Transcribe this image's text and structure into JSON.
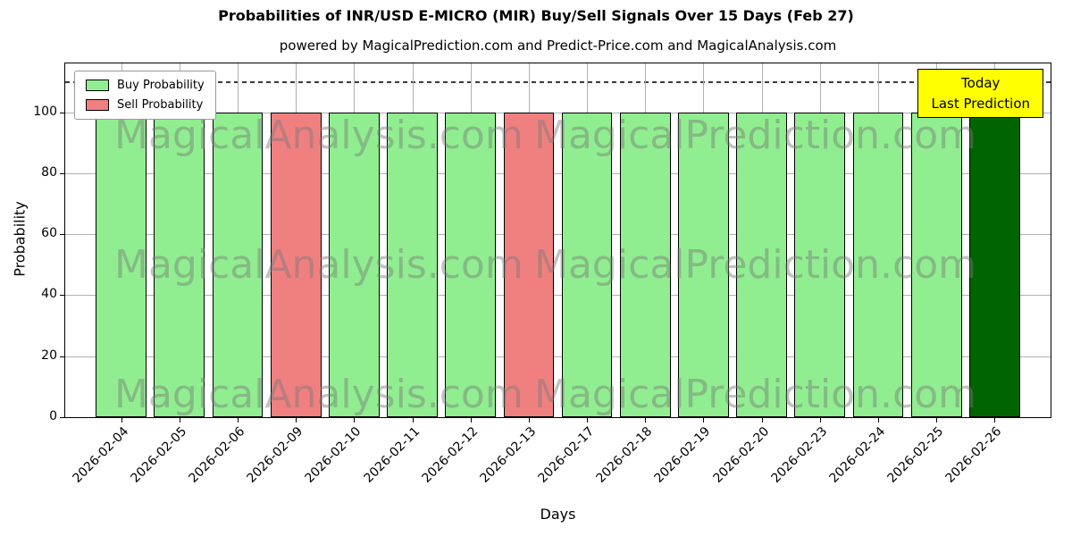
{
  "title": "Probabilities of INR/USD E-MICRO (MIR) Buy/Sell Signals Over 15 Days (Feb 27)",
  "subtitle": "powered by MagicalPrediction.com and Predict-Price.com and MagicalAnalysis.com",
  "watermarks": [
    "MagicalAnalysis.com",
    "MagicalPrediction.com"
  ],
  "legend": [
    {
      "label": "Buy Probability",
      "color": "#90EE90"
    },
    {
      "label": "Sell Probability",
      "color": "#F08080"
    }
  ],
  "annotation": {
    "lines": [
      "Today",
      "Last Prediction"
    ],
    "bg": "#FFFF00"
  },
  "chart_data": {
    "type": "bar",
    "title": "Probabilities of INR/USD E-MICRO (MIR) Buy/Sell Signals Over 15 Days (Feb 27)",
    "xlabel": "Days",
    "ylabel": "Probability",
    "ylim": [
      0,
      116
    ],
    "yticks": [
      0,
      20,
      40,
      60,
      80,
      100
    ],
    "grid": true,
    "dashed_line_y": 110,
    "legend_position": "upper left",
    "categories": [
      "2026-02-04",
      "2026-02-05",
      "2026-02-06",
      "2026-02-09",
      "2026-02-10",
      "2026-02-11",
      "2026-02-12",
      "2026-02-13",
      "2026-02-17",
      "2026-02-18",
      "2026-02-19",
      "2026-02-20",
      "2026-02-23",
      "2026-02-24",
      "2026-02-25",
      "2026-02-26"
    ],
    "values": [
      100,
      100,
      100,
      100,
      100,
      100,
      100,
      100,
      100,
      100,
      100,
      100,
      100,
      100,
      100,
      100
    ],
    "bar_types": [
      "buy",
      "buy",
      "buy",
      "sell",
      "buy",
      "buy",
      "buy",
      "sell",
      "buy",
      "buy",
      "buy",
      "buy",
      "buy",
      "buy",
      "buy",
      "today"
    ],
    "colors": {
      "buy": "#90EE90",
      "sell": "#F08080",
      "today": "#006400"
    }
  }
}
